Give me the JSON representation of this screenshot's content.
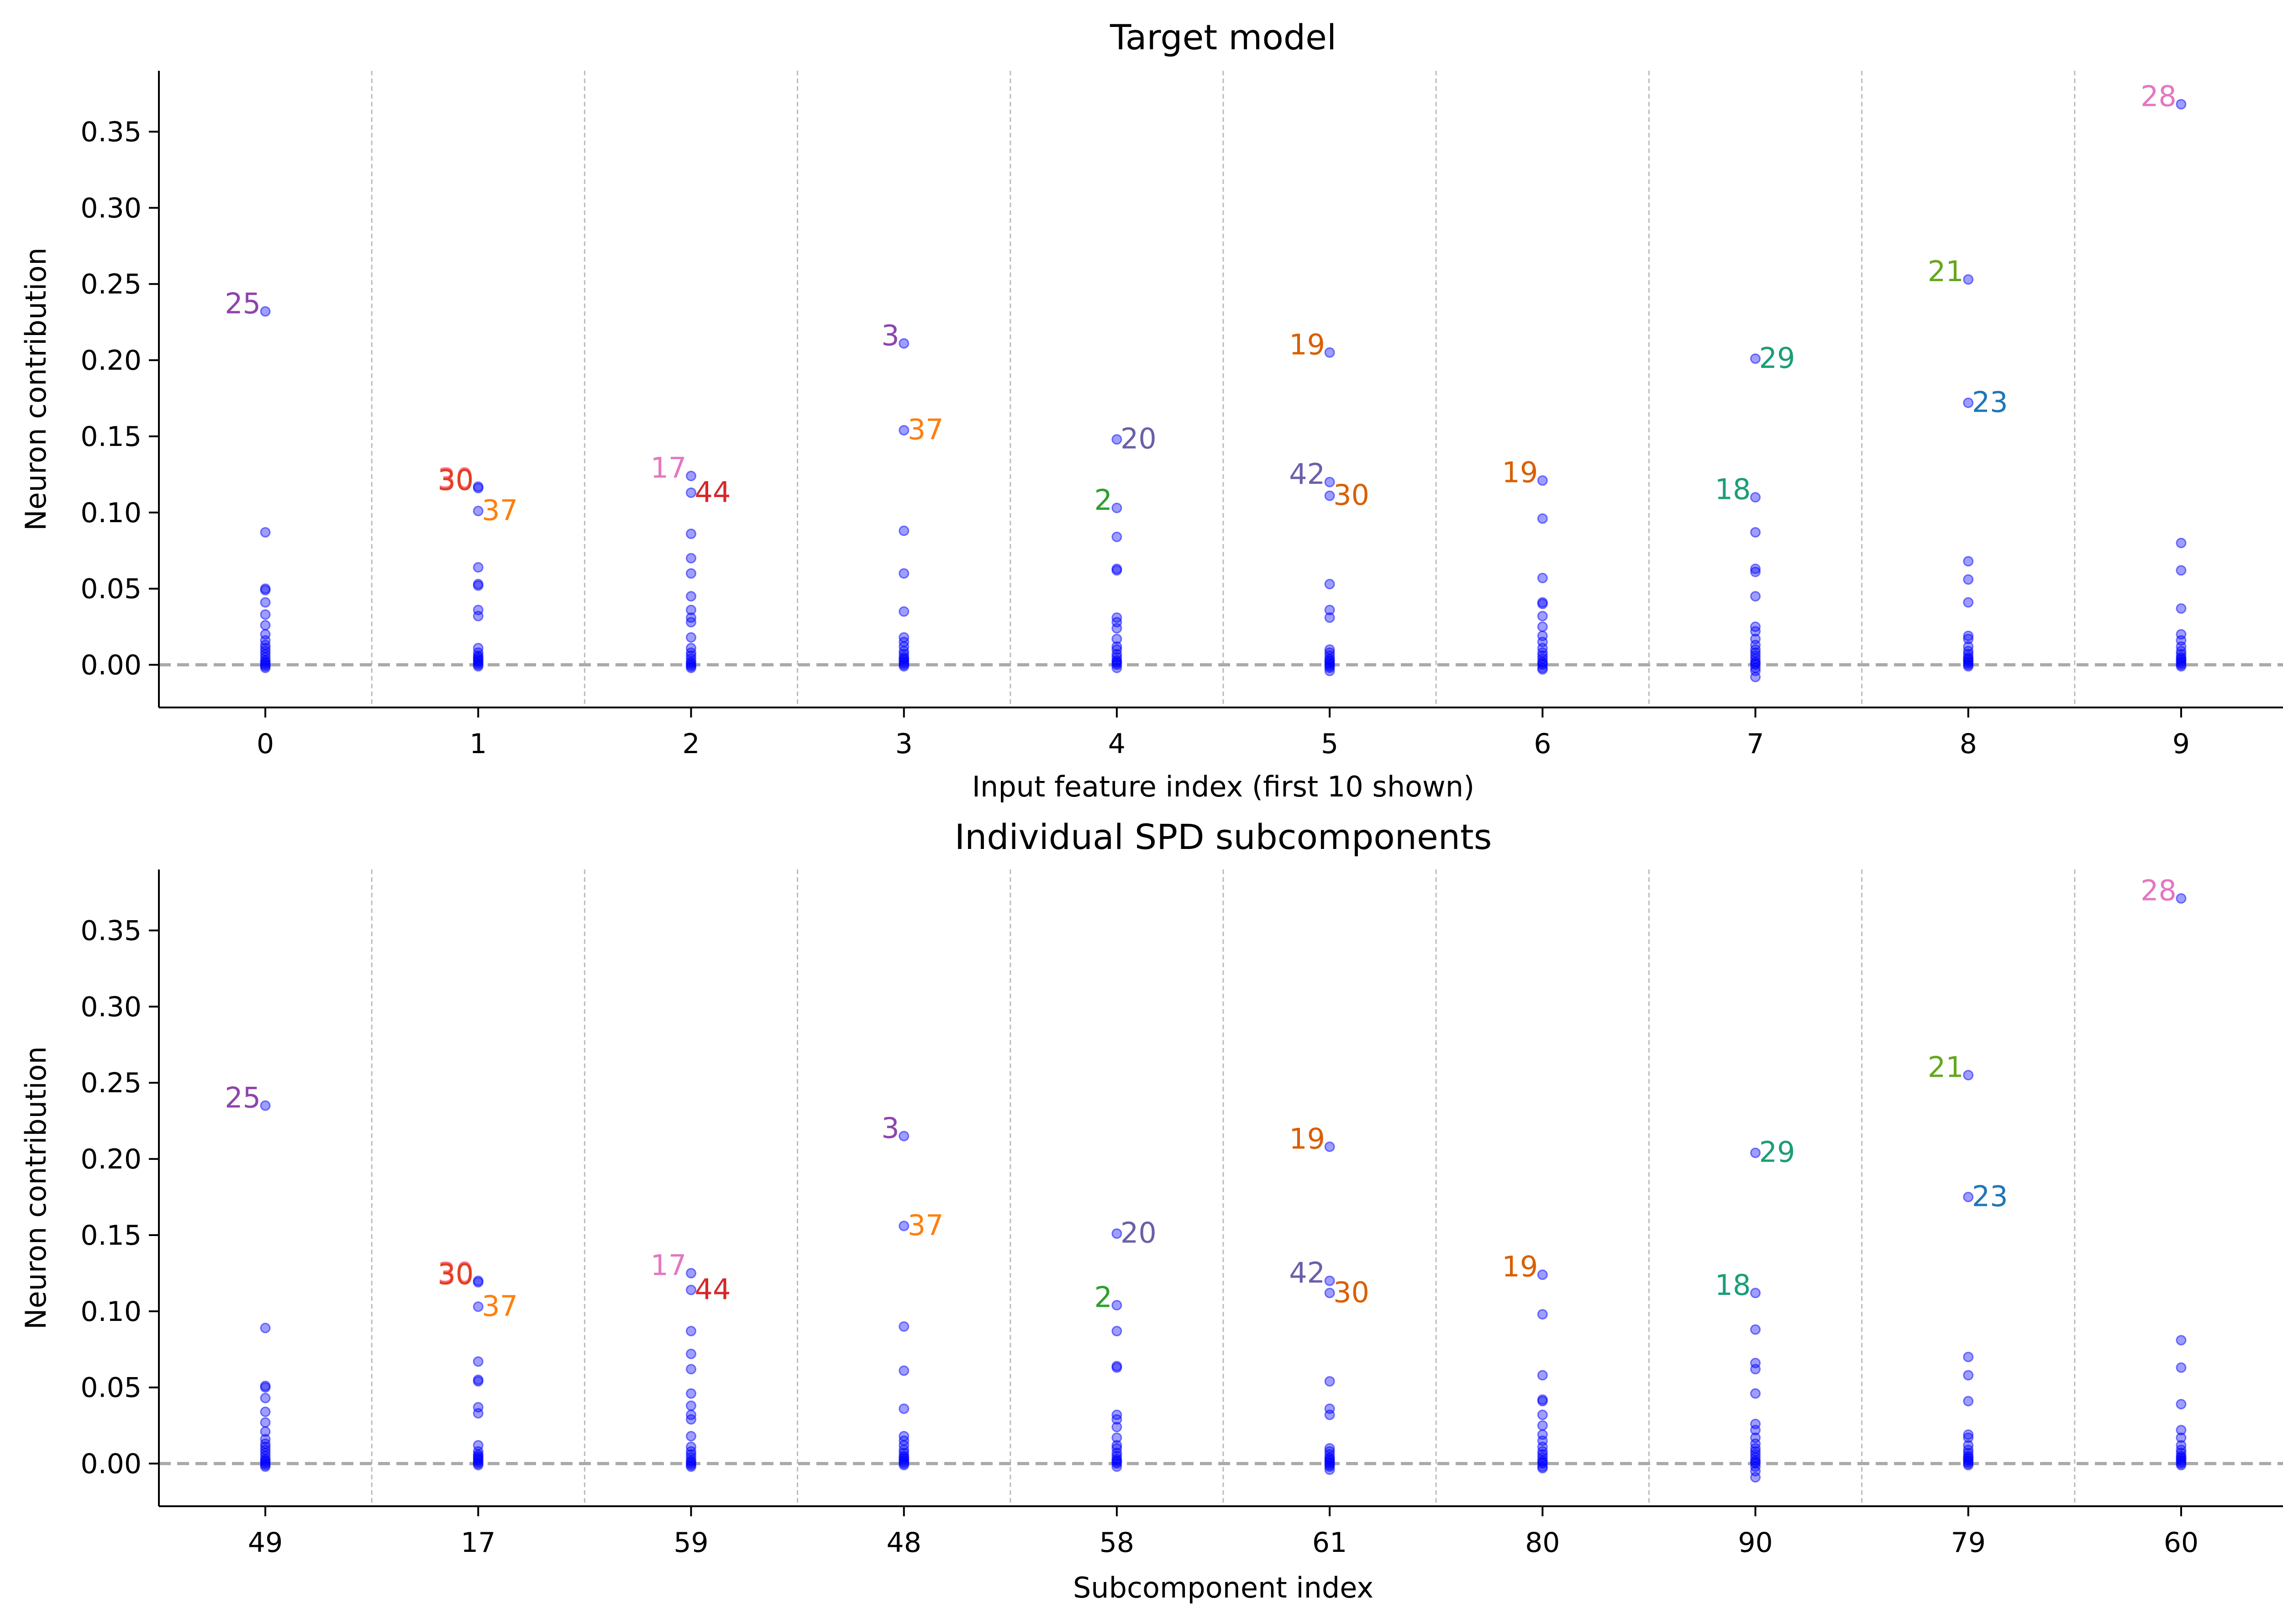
{
  "colors": {
    "points": "#0000ff",
    "zero_line": "#aaaaaa",
    "separator": "#bbbbbb"
  },
  "chart_data": [
    {
      "type": "scatter",
      "title": "Target model",
      "xlabel": "Input feature index (first 10 shown)",
      "ylabel": "Neuron contribution",
      "categories": [
        "0",
        "1",
        "2",
        "3",
        "4",
        "5",
        "6",
        "7",
        "8",
        "9"
      ],
      "ylim": [
        -0.028,
        0.39
      ],
      "yticks": [
        0.0,
        0.05,
        0.1,
        0.15,
        0.2,
        0.25,
        0.3,
        0.35
      ],
      "ytick_labels": [
        "0.00",
        "0.05",
        "0.10",
        "0.15",
        "0.20",
        "0.25",
        "0.30",
        "0.35"
      ],
      "grid": "vertical dashed separators between categories",
      "points": [
        [
          0.232,
          0.087,
          0.05,
          0.049,
          0.041,
          0.033,
          0.026,
          0.02,
          0.016,
          0.013,
          0.011,
          0.009,
          0.007,
          0.005,
          0.003,
          0.002,
          0.001,
          0.0,
          -0.001,
          -0.002
        ],
        [
          0.117,
          0.116,
          0.101,
          0.064,
          0.053,
          0.052,
          0.036,
          0.032,
          0.011,
          0.008,
          0.006,
          0.005,
          0.004,
          0.003,
          0.002,
          0.001,
          0.0,
          -0.001
        ],
        [
          0.124,
          0.113,
          0.086,
          0.07,
          0.06,
          0.045,
          0.036,
          0.031,
          0.028,
          0.018,
          0.011,
          0.008,
          0.006,
          0.004,
          0.002,
          0.001,
          0.0,
          -0.001,
          -0.002
        ],
        [
          0.211,
          0.154,
          0.088,
          0.06,
          0.035,
          0.018,
          0.015,
          0.012,
          0.009,
          0.007,
          0.005,
          0.004,
          0.003,
          0.002,
          0.001,
          0.0,
          -0.001
        ],
        [
          0.148,
          0.103,
          0.084,
          0.063,
          0.062,
          0.031,
          0.028,
          0.024,
          0.017,
          0.012,
          0.01,
          0.007,
          0.005,
          0.003,
          0.002,
          0.001,
          0.0,
          -0.002
        ],
        [
          0.205,
          0.12,
          0.111,
          0.053,
          0.036,
          0.031,
          0.01,
          0.008,
          0.006,
          0.004,
          0.003,
          0.002,
          0.001,
          0.0,
          -0.001,
          -0.002,
          -0.004
        ],
        [
          0.121,
          0.096,
          0.057,
          0.041,
          0.04,
          0.032,
          0.025,
          0.019,
          0.015,
          0.011,
          0.008,
          0.006,
          0.004,
          0.002,
          0.001,
          0.0,
          -0.002,
          -0.003
        ],
        [
          0.201,
          0.11,
          0.087,
          0.063,
          0.061,
          0.045,
          0.025,
          0.022,
          0.017,
          0.013,
          0.01,
          0.008,
          0.006,
          0.004,
          0.002,
          0.001,
          0.0,
          -0.002,
          -0.004,
          -0.008
        ],
        [
          0.253,
          0.172,
          0.068,
          0.056,
          0.041,
          0.019,
          0.017,
          0.012,
          0.009,
          0.007,
          0.005,
          0.004,
          0.003,
          0.002,
          0.001,
          0.0,
          -0.001
        ],
        [
          0.368,
          0.08,
          0.062,
          0.037,
          0.02,
          0.016,
          0.012,
          0.009,
          0.007,
          0.005,
          0.004,
          0.003,
          0.002,
          0.001,
          0.0,
          -0.001
        ]
      ],
      "annotations": [
        {
          "cat": 0,
          "y": 0.232,
          "text": "25",
          "color": "#8e44ad",
          "side": "left"
        },
        {
          "cat": 1,
          "y": 0.117,
          "text": "30",
          "color": "#ff6f8a",
          "side": "left"
        },
        {
          "cat": 1,
          "y": 0.116,
          "text": "30",
          "color": "#e0401e",
          "side": "left"
        },
        {
          "cat": 1,
          "y": 0.101,
          "text": "37",
          "color": "#ff7f0e",
          "side": "right"
        },
        {
          "cat": 2,
          "y": 0.124,
          "text": "17",
          "color": "#e377c2",
          "side": "left"
        },
        {
          "cat": 2,
          "y": 0.113,
          "text": "44",
          "color": "#d62728",
          "side": "right"
        },
        {
          "cat": 3,
          "y": 0.211,
          "text": "3",
          "color": "#8e44ad",
          "side": "left"
        },
        {
          "cat": 3,
          "y": 0.154,
          "text": "37",
          "color": "#ff7f0e",
          "side": "right"
        },
        {
          "cat": 4,
          "y": 0.148,
          "text": "20",
          "color": "#6a5fa8",
          "side": "right"
        },
        {
          "cat": 4,
          "y": 0.103,
          "text": "2",
          "color": "#2ca02c",
          "side": "left"
        },
        {
          "cat": 5,
          "y": 0.205,
          "text": "19",
          "color": "#d95f02",
          "side": "left"
        },
        {
          "cat": 5,
          "y": 0.12,
          "text": "42",
          "color": "#6a5fa8",
          "side": "left"
        },
        {
          "cat": 5,
          "y": 0.111,
          "text": "30",
          "color": "#d95f02",
          "side": "right"
        },
        {
          "cat": 6,
          "y": 0.121,
          "text": "19",
          "color": "#d95f02",
          "side": "left"
        },
        {
          "cat": 7,
          "y": 0.201,
          "text": "29",
          "color": "#1b9e77",
          "side": "right"
        },
        {
          "cat": 7,
          "y": 0.11,
          "text": "18",
          "color": "#1b9e77",
          "side": "left"
        },
        {
          "cat": 8,
          "y": 0.253,
          "text": "21",
          "color": "#66a61e",
          "side": "left"
        },
        {
          "cat": 8,
          "y": 0.172,
          "text": "23",
          "color": "#1f77b4",
          "side": "right"
        },
        {
          "cat": 9,
          "y": 0.368,
          "text": "28",
          "color": "#e377c2",
          "side": "left"
        }
      ]
    },
    {
      "type": "scatter",
      "title": "Individual SPD subcomponents",
      "xlabel": "Subcomponent index",
      "ylabel": "Neuron contribution",
      "categories": [
        "49",
        "17",
        "59",
        "48",
        "58",
        "61",
        "80",
        "90",
        "79",
        "60"
      ],
      "ylim": [
        -0.028,
        0.39
      ],
      "yticks": [
        0.0,
        0.05,
        0.1,
        0.15,
        0.2,
        0.25,
        0.3,
        0.35
      ],
      "ytick_labels": [
        "0.00",
        "0.05",
        "0.10",
        "0.15",
        "0.20",
        "0.25",
        "0.30",
        "0.35"
      ],
      "grid": "vertical dashed separators between categories",
      "points": [
        [
          0.235,
          0.089,
          0.051,
          0.05,
          0.043,
          0.034,
          0.027,
          0.021,
          0.016,
          0.013,
          0.011,
          0.009,
          0.007,
          0.005,
          0.003,
          0.002,
          0.001,
          0.0,
          -0.001,
          -0.002
        ],
        [
          0.12,
          0.119,
          0.103,
          0.067,
          0.055,
          0.054,
          0.037,
          0.033,
          0.012,
          0.008,
          0.006,
          0.005,
          0.004,
          0.003,
          0.002,
          0.001,
          0.0,
          -0.001
        ],
        [
          0.125,
          0.114,
          0.087,
          0.072,
          0.062,
          0.046,
          0.038,
          0.032,
          0.029,
          0.018,
          0.011,
          0.008,
          0.006,
          0.004,
          0.002,
          0.001,
          0.0,
          -0.001,
          -0.002
        ],
        [
          0.215,
          0.156,
          0.09,
          0.061,
          0.036,
          0.018,
          0.015,
          0.012,
          0.009,
          0.007,
          0.005,
          0.004,
          0.003,
          0.002,
          0.001,
          0.0,
          -0.001
        ],
        [
          0.151,
          0.104,
          0.087,
          0.064,
          0.063,
          0.032,
          0.029,
          0.024,
          0.017,
          0.012,
          0.01,
          0.007,
          0.005,
          0.003,
          0.002,
          0.001,
          0.0,
          -0.002
        ],
        [
          0.208,
          0.12,
          0.112,
          0.054,
          0.036,
          0.032,
          0.01,
          0.008,
          0.006,
          0.004,
          0.003,
          0.002,
          0.001,
          0.0,
          -0.001,
          -0.002,
          -0.004
        ],
        [
          0.124,
          0.098,
          0.058,
          0.042,
          0.041,
          0.032,
          0.025,
          0.019,
          0.015,
          0.011,
          0.008,
          0.006,
          0.004,
          0.002,
          0.001,
          0.0,
          -0.002,
          -0.003
        ],
        [
          0.204,
          0.112,
          0.088,
          0.066,
          0.062,
          0.046,
          0.026,
          0.022,
          0.017,
          0.013,
          0.01,
          0.008,
          0.006,
          0.004,
          0.002,
          0.001,
          0.0,
          -0.002,
          -0.005,
          -0.009
        ],
        [
          0.255,
          0.175,
          0.07,
          0.058,
          0.041,
          0.019,
          0.017,
          0.012,
          0.009,
          0.007,
          0.005,
          0.004,
          0.003,
          0.002,
          0.001,
          0.0,
          -0.001
        ],
        [
          0.371,
          0.081,
          0.063,
          0.039,
          0.022,
          0.017,
          0.012,
          0.009,
          0.007,
          0.005,
          0.004,
          0.003,
          0.002,
          0.001,
          0.0,
          -0.001
        ]
      ],
      "annotations": [
        {
          "cat": 0,
          "y": 0.235,
          "text": "25",
          "color": "#8e44ad",
          "side": "left"
        },
        {
          "cat": 1,
          "y": 0.12,
          "text": "30",
          "color": "#ff6f8a",
          "side": "left"
        },
        {
          "cat": 1,
          "y": 0.119,
          "text": "30",
          "color": "#e0401e",
          "side": "left"
        },
        {
          "cat": 1,
          "y": 0.103,
          "text": "37",
          "color": "#ff7f0e",
          "side": "right"
        },
        {
          "cat": 2,
          "y": 0.125,
          "text": "17",
          "color": "#e377c2",
          "side": "left"
        },
        {
          "cat": 2,
          "y": 0.114,
          "text": "44",
          "color": "#d62728",
          "side": "right"
        },
        {
          "cat": 3,
          "y": 0.215,
          "text": "3",
          "color": "#8e44ad",
          "side": "left"
        },
        {
          "cat": 3,
          "y": 0.156,
          "text": "37",
          "color": "#ff7f0e",
          "side": "right"
        },
        {
          "cat": 4,
          "y": 0.151,
          "text": "20",
          "color": "#6a5fa8",
          "side": "right"
        },
        {
          "cat": 4,
          "y": 0.104,
          "text": "2",
          "color": "#2ca02c",
          "side": "left"
        },
        {
          "cat": 5,
          "y": 0.208,
          "text": "19",
          "color": "#d95f02",
          "side": "left"
        },
        {
          "cat": 5,
          "y": 0.12,
          "text": "42",
          "color": "#6a5fa8",
          "side": "left"
        },
        {
          "cat": 5,
          "y": 0.112,
          "text": "30",
          "color": "#d95f02",
          "side": "right"
        },
        {
          "cat": 6,
          "y": 0.124,
          "text": "19",
          "color": "#d95f02",
          "side": "left"
        },
        {
          "cat": 7,
          "y": 0.204,
          "text": "29",
          "color": "#1b9e77",
          "side": "right"
        },
        {
          "cat": 7,
          "y": 0.112,
          "text": "18",
          "color": "#1b9e77",
          "side": "left"
        },
        {
          "cat": 8,
          "y": 0.255,
          "text": "21",
          "color": "#66a61e",
          "side": "left"
        },
        {
          "cat": 8,
          "y": 0.175,
          "text": "23",
          "color": "#1f77b4",
          "side": "right"
        },
        {
          "cat": 9,
          "y": 0.371,
          "text": "28",
          "color": "#e377c2",
          "side": "left"
        }
      ]
    }
  ]
}
